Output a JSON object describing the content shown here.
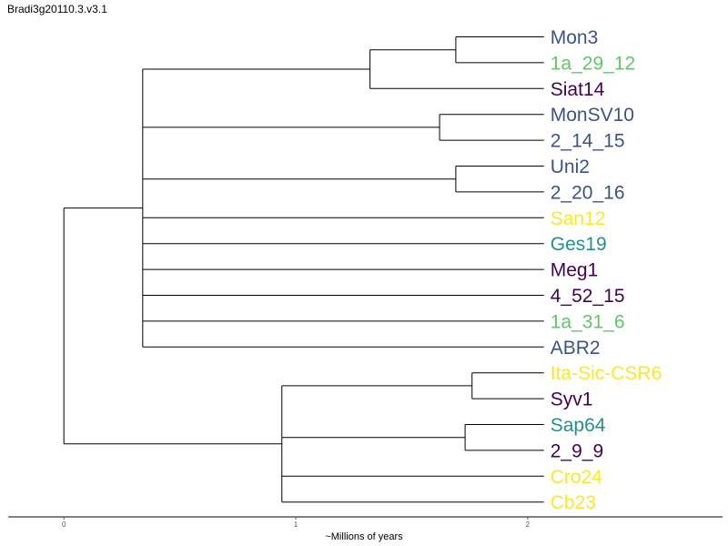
{
  "chart_data": {
    "type": "dendrogram",
    "title": "Bradi3g20110.3.v3.1",
    "xlabel": "~Millions of years",
    "x_ticks": [
      0,
      1,
      2
    ],
    "x_range": [
      -0.24,
      2.84
    ],
    "colors": {
      "dark_purple": "#440154",
      "blue": "#3b528b",
      "teal": "#21918c",
      "green": "#5ec962",
      "yellow": "#fde725"
    },
    "leaves": [
      {
        "name": "Mon3",
        "color": "blue"
      },
      {
        "name": "1a_29_12",
        "color": "green"
      },
      {
        "name": "Siat14",
        "color": "dark_purple"
      },
      {
        "name": "MonSV10",
        "color": "blue"
      },
      {
        "name": "2_14_15",
        "color": "blue"
      },
      {
        "name": "Uni2",
        "color": "blue"
      },
      {
        "name": "2_20_16",
        "color": "blue"
      },
      {
        "name": "San12",
        "color": "yellow"
      },
      {
        "name": "Ges19",
        "color": "teal"
      },
      {
        "name": "Meg1",
        "color": "dark_purple"
      },
      {
        "name": "4_52_15",
        "color": "dark_purple"
      },
      {
        "name": "1a_31_6",
        "color": "green"
      },
      {
        "name": "ABR2",
        "color": "blue"
      },
      {
        "name": "Ita-Sic-CSR6",
        "color": "yellow"
      },
      {
        "name": "Syv1",
        "color": "dark_purple"
      },
      {
        "name": "Sap64",
        "color": "teal"
      },
      {
        "name": "2_9_9",
        "color": "dark_purple"
      },
      {
        "name": "Cro24",
        "color": "yellow"
      },
      {
        "name": "Cb23",
        "color": "yellow"
      }
    ],
    "leaf_depth": 2.07,
    "tree": {
      "h": 0,
      "children": [
        {
          "h": 0.34,
          "children": [
            {
              "h": 1.32,
              "children": [
                {
                  "h": 1.69,
                  "children": [
                    {
                      "leaf": 0
                    },
                    {
                      "leaf": 1
                    }
                  ]
                },
                {
                  "leaf": 2
                }
              ]
            },
            {
              "h": 1.62,
              "children": [
                {
                  "leaf": 3
                },
                {
                  "leaf": 4
                }
              ]
            },
            {
              "h": 1.69,
              "children": [
                {
                  "leaf": 5
                },
                {
                  "leaf": 6
                }
              ]
            },
            {
              "leaf": 7
            },
            {
              "leaf": 8
            },
            {
              "leaf": 9
            },
            {
              "leaf": 10
            },
            {
              "leaf": 11
            },
            {
              "leaf": 12
            }
          ]
        },
        {
          "h": 0.94,
          "children": [
            {
              "h": 1.76,
              "children": [
                {
                  "leaf": 13
                },
                {
                  "leaf": 14
                }
              ]
            },
            {
              "h": 1.73,
              "children": [
                {
                  "leaf": 15
                },
                {
                  "leaf": 16
                }
              ]
            },
            {
              "leaf": 17
            },
            {
              "leaf": 18
            }
          ]
        }
      ]
    }
  }
}
